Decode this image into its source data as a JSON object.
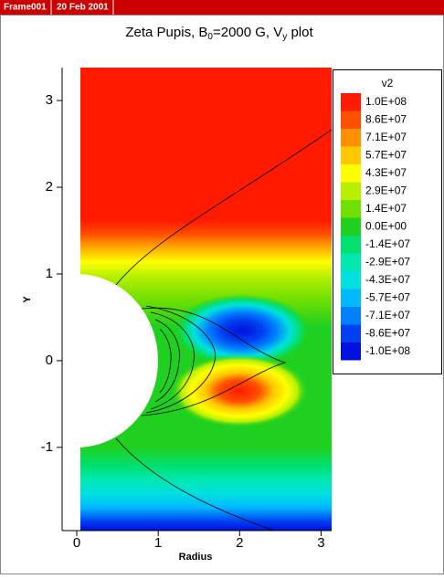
{
  "header": {
    "frame": "Frame001",
    "date": "20 Feb 2001"
  },
  "chart_data": {
    "type": "contour",
    "title_parts": [
      "Zeta Pupis, B",
      "0",
      "=2000 G, V",
      "y",
      " plot"
    ],
    "x_label": "Radius",
    "y_label": "Y",
    "xlim": [
      -0.18,
      3.13
    ],
    "ylim": [
      -1.96,
      3.38
    ],
    "xticks": [
      0,
      1,
      2,
      3
    ],
    "yticks": [
      -1,
      0,
      1,
      2,
      3
    ],
    "legend": {
      "title": "v2",
      "levels": [
        {
          "value": 100000000,
          "label": "1.0E+08",
          "color": "#ff1a00"
        },
        {
          "value": 86000000,
          "label": "8.6E+07",
          "color": "#ff5000"
        },
        {
          "value": 71000000,
          "label": "7.1E+07",
          "color": "#ff9000"
        },
        {
          "value": 57000000,
          "label": "5.7E+07",
          "color": "#ffc800"
        },
        {
          "value": 43000000,
          "label": "4.3E+07",
          "color": "#ffff00"
        },
        {
          "value": 29000000,
          "label": "2.9E+07",
          "color": "#b8f000"
        },
        {
          "value": 14000000,
          "label": "1.4E+07",
          "color": "#70e000"
        },
        {
          "value": 0,
          "label": "0.0E+00",
          "color": "#20d020"
        },
        {
          "value": -14000000,
          "label": "-1.4E+07",
          "color": "#00e070"
        },
        {
          "value": -29000000,
          "label": "-2.9E+07",
          "color": "#00e8b0"
        },
        {
          "value": -43000000,
          "label": "-4.3E+07",
          "color": "#00e0e0"
        },
        {
          "value": -57000000,
          "label": "-5.7E+07",
          "color": "#00b8ff"
        },
        {
          "value": -71000000,
          "label": "-7.1E+07",
          "color": "#0080ff"
        },
        {
          "value": -86000000,
          "label": "-8.6E+07",
          "color": "#0040f0"
        },
        {
          "value": -100000000,
          "label": "-1.0E+08",
          "color": "#0010e0"
        }
      ]
    }
  }
}
